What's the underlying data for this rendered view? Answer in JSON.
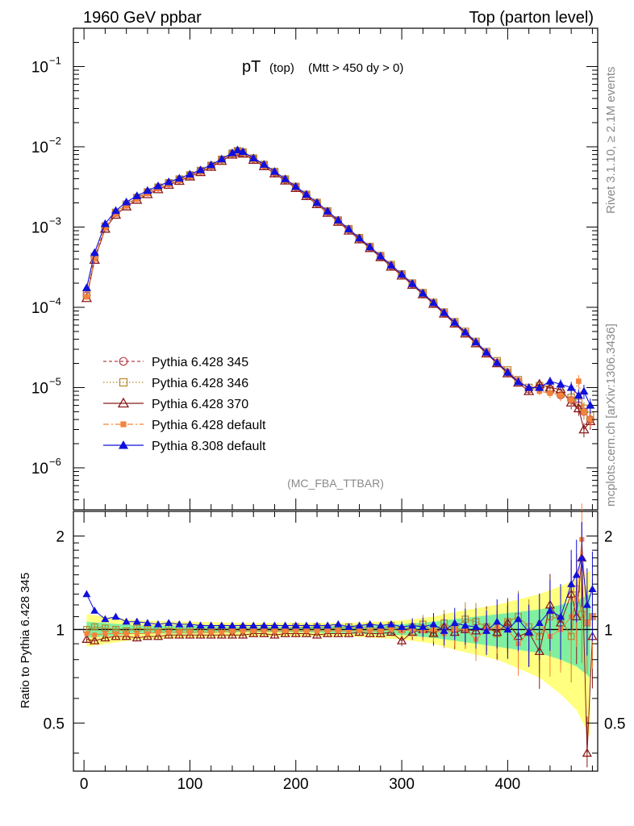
{
  "header": {
    "left": "1960 GeV ppbar",
    "right": "Top (parton level)"
  },
  "side": {
    "rivet": "Rivet 3.1.10, ≥ 2.1M events",
    "mcplots": "mcplots.cern.ch [arXiv:1306.3436]"
  },
  "colors": {
    "p345": "#b5424a",
    "p346": "#b8862b",
    "p370": "#8b1a1a",
    "p6def": "#f5823c",
    "p8def": "#1010dd",
    "band_outer": "#ffff80",
    "band_inner": "#80f0a0"
  },
  "chart_data": [
    {
      "type": "line",
      "title_main": "pT",
      "title_sub": "(top)",
      "title_cut": "(Mtt > 450 dy > 0)",
      "watermark": "(MC_FBA_TTBAR)",
      "xlabel": "",
      "ylabel": "",
      "log_y": true,
      "ylim": [
        3e-07,
        0.3
      ],
      "xlim": [
        -10,
        485
      ],
      "y_ticks": [
        {
          "value": 0.1,
          "label": "10",
          "exp": "−1"
        },
        {
          "value": 0.01,
          "label": "10",
          "exp": "−2"
        },
        {
          "value": 0.001,
          "label": "10",
          "exp": "−3"
        },
        {
          "value": 0.0001,
          "label": "10",
          "exp": "−4"
        },
        {
          "value": 1e-05,
          "label": "10",
          "exp": "−5"
        },
        {
          "value": 1e-06,
          "label": "10",
          "exp": "−6"
        }
      ],
      "legend_position": "lower-left",
      "x": [
        2.5,
        10,
        20,
        30,
        40,
        50,
        60,
        70,
        80,
        90,
        100,
        110,
        120,
        130,
        140,
        145,
        150,
        160,
        170,
        180,
        190,
        200,
        210,
        220,
        230,
        240,
        250,
        260,
        270,
        280,
        290,
        300,
        310,
        320,
        330,
        340,
        350,
        360,
        370,
        380,
        390,
        400,
        410,
        420,
        430,
        440,
        450,
        460,
        467,
        472,
        478
      ],
      "series": [
        {
          "name": "Pythia 6.428 345",
          "key": "p345",
          "marker": "circle-open",
          "dash": "4,3",
          "values": [
            0.00014,
            0.00042,
            0.001,
            0.0015,
            0.0019,
            0.0023,
            0.0027,
            0.0031,
            0.0035,
            0.0039,
            0.0044,
            0.005,
            0.0058,
            0.0069,
            0.0082,
            0.0088,
            0.0085,
            0.0071,
            0.0059,
            0.0048,
            0.0039,
            0.00315,
            0.0025,
            0.00198,
            0.00155,
            0.0012,
            0.00093,
            0.00072,
            0.00056,
            0.00043,
            0.00033,
            0.000255,
            0.000195,
            0.000148,
            0.000112,
            8.5e-05,
            6.4e-05,
            4.8e-05,
            3.6e-05,
            2.7e-05,
            2.05e-05,
            1.55e-05,
            1.2e-05,
            9.5e-06,
            1e-05,
            9e-06,
            8e-06,
            7e-06,
            6e-06,
            5e-06,
            4e-06
          ]
        },
        {
          "name": "Pythia 6.428 346",
          "key": "p346",
          "marker": "square-open",
          "dash": "1.5,2.5",
          "values": [
            0.000145,
            0.00043,
            0.00102,
            0.00152,
            0.00192,
            0.00233,
            0.00273,
            0.00313,
            0.00355,
            0.00395,
            0.00445,
            0.00505,
            0.00585,
            0.00695,
            0.0083,
            0.0089,
            0.0086,
            0.0072,
            0.006,
            0.0049,
            0.00395,
            0.0032,
            0.00255,
            0.00202,
            0.00158,
            0.00122,
            0.00095,
            0.000735,
            0.00057,
            0.00044,
            0.00034,
            0.00026,
            0.0002,
            0.000152,
            0.000115,
            8.7e-05,
            6.6e-05,
            5e-05,
            3.75e-05,
            2.8e-05,
            2.15e-05,
            1.65e-05,
            1.25e-05,
            1e-05,
            1.05e-05,
            9.5e-06,
            8.5e-06,
            7.5e-06,
            6.5e-06,
            5.5e-06,
            4.5e-06
          ]
        },
        {
          "name": "Pythia 6.428 370",
          "key": "p370",
          "marker": "triangle-open",
          "dash": "",
          "values": [
            0.00013,
            0.00039,
            0.00095,
            0.00142,
            0.0018,
            0.00218,
            0.00256,
            0.00295,
            0.00335,
            0.00375,
            0.00425,
            0.00482,
            0.0056,
            0.00665,
            0.00795,
            0.0085,
            0.0082,
            0.00685,
            0.0057,
            0.00465,
            0.00378,
            0.00305,
            0.00242,
            0.00192,
            0.0015,
            0.00116,
            0.0009,
            0.0007,
            0.000545,
            0.00042,
            0.00032,
            0.000248,
            0.00019,
            0.000145,
            0.00011,
            8.3e-05,
            6.25e-05,
            4.7e-05,
            3.55e-05,
            2.65e-05,
            2e-05,
            1.5e-05,
            1.15e-05,
            9e-06,
            1.1e-05,
            1e-05,
            9.5e-06,
            6.5e-06,
            5.5e-06,
            3e-06,
            3.8e-06
          ]
        },
        {
          "name": "Pythia 6.428 default",
          "key": "p6def",
          "marker": "square-filled",
          "dash": "7,3,2,3",
          "values": [
            0.000135,
            0.0004,
            0.00097,
            0.00145,
            0.00184,
            0.00223,
            0.00262,
            0.00302,
            0.00342,
            0.00382,
            0.0043,
            0.0049,
            0.0057,
            0.0068,
            0.0081,
            0.0087,
            0.0084,
            0.007,
            0.00585,
            0.00475,
            0.00387,
            0.00312,
            0.00248,
            0.00196,
            0.00154,
            0.00119,
            0.000925,
            0.000715,
            0.000555,
            0.00043,
            0.00033,
            0.000255,
            0.000195,
            0.000149,
            0.000113,
            8.6e-05,
            6.5e-05,
            4.9e-05,
            3.7e-05,
            2.75e-05,
            2.1e-05,
            1.58e-05,
            1.22e-05,
            9.8e-06,
            9e-06,
            8.5e-06,
            8e-06,
            7e-06,
            1.2e-05,
            5e-06,
            4e-06
          ]
        },
        {
          "name": "Pythia 8.308 default",
          "key": "p8def",
          "marker": "triangle-filled",
          "dash": "",
          "values": [
            0.000175,
            0.00048,
            0.0011,
            0.0016,
            0.00205,
            0.00245,
            0.00285,
            0.00325,
            0.00365,
            0.00405,
            0.00455,
            0.00515,
            0.00595,
            0.00705,
            0.0084,
            0.0091,
            0.0087,
            0.00725,
            0.00605,
            0.00492,
            0.00398,
            0.0032,
            0.00255,
            0.00202,
            0.00158,
            0.00122,
            0.000945,
            0.00073,
            0.000565,
            0.000435,
            0.000335,
            0.000258,
            0.000197,
            0.00015,
            0.000114,
            8.6e-05,
            6.5e-05,
            4.9e-05,
            3.7e-05,
            2.75e-05,
            2.05e-05,
            1.55e-05,
            1.18e-05,
            1e-05,
            1e-05,
            1.2e-05,
            1.1e-05,
            1e-05,
            8e-06,
            9e-06,
            6e-06
          ]
        }
      ]
    },
    {
      "type": "line",
      "ylabel": "Ratio to Pythia 6.428 345",
      "xlabel": "",
      "log_y": true,
      "ylim": [
        0.35,
        2.4
      ],
      "xlim": [
        -10,
        485
      ],
      "y_ticks": [
        {
          "value": 0.5,
          "label": "0.5"
        },
        {
          "value": 1,
          "label": "1"
        },
        {
          "value": 2,
          "label": "2"
        }
      ],
      "x_ticks": [
        {
          "value": 0,
          "label": "0"
        },
        {
          "value": 100,
          "label": "100"
        },
        {
          "value": 200,
          "label": "200"
        },
        {
          "value": 300,
          "label": "300"
        },
        {
          "value": 400,
          "label": "400"
        }
      ],
      "band": {
        "x": [
          2.5,
          50,
          100,
          150,
          200,
          250,
          300,
          330,
          350,
          370,
          390,
          410,
          430,
          450,
          465,
          478
        ],
        "outer": [
          0.12,
          0.07,
          0.06,
          0.05,
          0.05,
          0.05,
          0.07,
          0.1,
          0.14,
          0.17,
          0.2,
          0.25,
          0.3,
          0.38,
          0.45,
          0.55
        ],
        "inner": [
          0.06,
          0.03,
          0.03,
          0.02,
          0.02,
          0.03,
          0.04,
          0.06,
          0.08,
          0.1,
          0.12,
          0.14,
          0.16,
          0.2,
          0.24,
          0.3
        ]
      },
      "x": [
        2.5,
        10,
        20,
        30,
        40,
        50,
        60,
        70,
        80,
        90,
        100,
        110,
        120,
        130,
        140,
        150,
        160,
        170,
        180,
        190,
        200,
        210,
        220,
        230,
        240,
        250,
        260,
        270,
        280,
        290,
        300,
        310,
        320,
        330,
        340,
        350,
        360,
        370,
        380,
        390,
        400,
        410,
        420,
        430,
        440,
        450,
        460,
        465,
        470,
        475,
        480
      ],
      "series": [
        {
          "name": "Pythia 6.428 346",
          "key": "p346",
          "marker": "square-open",
          "values": [
            1.0,
            1.02,
            1.01,
            1.0,
            0.99,
            1.01,
            1.0,
            1.0,
            1.01,
            1.0,
            1.0,
            1.01,
            1.0,
            1.01,
            1.0,
            1.01,
            1.0,
            1.01,
            1.01,
            1.0,
            1.02,
            1.01,
            1.02,
            1.01,
            1.01,
            1.02,
            1.01,
            1.02,
            1.0,
            1.03,
            1.0,
            1.02,
            1.04,
            0.98,
            1.05,
            1.0,
            1.08,
            1.06,
            1.02,
            0.97,
            1.06,
            1.1,
            1.02,
            0.95,
            1.1,
            1.08,
            0.95,
            1.35,
            1.12,
            1.05,
            1.1
          ]
        },
        {
          "name": "Pythia 6.428 370",
          "key": "p370",
          "marker": "triangle-open",
          "values": [
            0.93,
            0.92,
            0.94,
            0.95,
            0.95,
            0.94,
            0.95,
            0.95,
            0.96,
            0.96,
            0.96,
            0.96,
            0.96,
            0.96,
            0.96,
            0.96,
            0.97,
            0.97,
            0.96,
            0.97,
            0.97,
            0.97,
            0.96,
            0.97,
            0.97,
            0.97,
            0.98,
            0.97,
            0.97,
            0.98,
            0.92,
            0.98,
            1.0,
            0.97,
            1.02,
            0.98,
            1.0,
            0.99,
            1.02,
            0.98,
            1.05,
            0.95,
            0.98,
            0.85,
            1.2,
            1.05,
            1.3,
            1.1,
            1.7,
            0.4,
            0.95
          ]
        },
        {
          "name": "Pythia 6.428 default",
          "key": "p6def",
          "marker": "square-filled",
          "values": [
            0.97,
            0.96,
            0.97,
            0.97,
            0.97,
            0.97,
            0.97,
            0.98,
            0.98,
            0.98,
            0.98,
            0.98,
            0.98,
            0.98,
            0.99,
            0.99,
            0.99,
            0.99,
            0.99,
            0.99,
            0.99,
            0.99,
            0.99,
            0.99,
            0.99,
            0.99,
            0.99,
            0.99,
            0.99,
            1.0,
            0.99,
            1.0,
            0.99,
            1.0,
            0.97,
            1.0,
            1.0,
            0.93,
            1.0,
            1.02,
            1.0,
            0.9,
            0.98,
            1.05,
            0.95,
            1.0,
            1.1,
            1.25,
            1.95,
            1.05,
            1.1
          ]
        },
        {
          "name": "Pythia 8.308 default",
          "key": "p8def",
          "marker": "triangle-filled",
          "values": [
            1.3,
            1.15,
            1.08,
            1.1,
            1.06,
            1.06,
            1.05,
            1.04,
            1.05,
            1.04,
            1.04,
            1.03,
            1.03,
            1.03,
            1.03,
            1.03,
            1.03,
            1.03,
            1.03,
            1.03,
            1.03,
            1.03,
            1.03,
            1.03,
            1.04,
            1.02,
            1.03,
            1.04,
            1.03,
            1.04,
            1.02,
            1.03,
            1.02,
            1.04,
            0.99,
            1.05,
            1.03,
            1.02,
            0.99,
            1.06,
            1.0,
            1.08,
            0.98,
            1.05,
            1.15,
            1.1,
            1.4,
            1.5,
            1.7,
            1.2,
            1.35
          ]
        }
      ]
    }
  ]
}
